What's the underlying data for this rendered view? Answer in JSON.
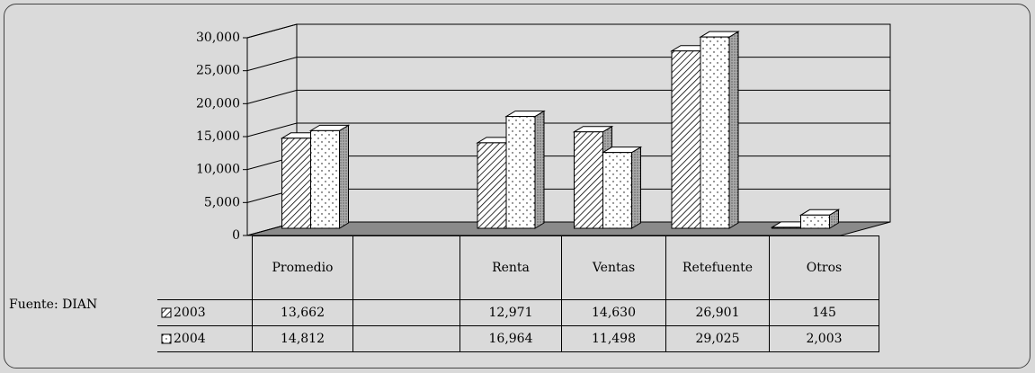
{
  "chart_data": {
    "type": "bar3d",
    "categories": [
      "Promedio",
      null,
      "Renta",
      "Ventas",
      "Retefuente",
      "Otros"
    ],
    "series": [
      {
        "name": "2003",
        "pattern": "hatch",
        "values": [
          13662,
          null,
          12971,
          14630,
          26901,
          145
        ],
        "value_labels": [
          "13,662",
          null,
          "12,971",
          "14,630",
          "26,901",
          "145"
        ]
      },
      {
        "name": "2004",
        "pattern": "dots",
        "values": [
          14812,
          null,
          16964,
          11498,
          29025,
          2003
        ],
        "value_labels": [
          "14,812",
          null,
          "16,964",
          "11,498",
          "29,025",
          "2,003"
        ]
      }
    ],
    "ylim": [
      0,
      30000
    ],
    "yticks": [
      0,
      {
        "value": 5000,
        "label": "5,000"
      },
      {
        "value": 10000,
        "label": "10,000"
      },
      {
        "value": 15000,
        "label": "15,000"
      },
      {
        "value": 20000,
        "label": "20,000"
      },
      {
        "value": 25000,
        "label": "25,000"
      },
      {
        "value": 30000,
        "label": "30,000"
      }
    ],
    "grid": true,
    "annotation": "Fuente: DIAN"
  }
}
